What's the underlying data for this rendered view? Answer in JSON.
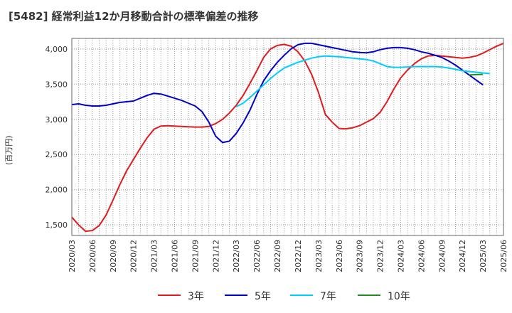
{
  "title": "[5482]  経常利益12か月移動合計の標準偏差の推移",
  "chart_data": {
    "type": "line",
    "title": "[5482]  経常利益12か月移動合計の標準偏差の推移",
    "ylabel": "(百万円)",
    "xlabel": "",
    "ylim": [
      1350,
      4150
    ],
    "yticks": [
      1500,
      2000,
      2500,
      3000,
      3500,
      4000
    ],
    "ytick_labels": [
      "1,500",
      "2,000",
      "2,500",
      "3,000",
      "3,500",
      "4,000"
    ],
    "x_start": "2020-03",
    "x_end": "2025-06",
    "xtick_labels": [
      "2020/03",
      "2020/06",
      "2020/09",
      "2020/12",
      "2021/03",
      "2021/06",
      "2021/09",
      "2021/12",
      "2022/03",
      "2022/06",
      "2022/09",
      "2022/12",
      "2023/03",
      "2023/06",
      "2023/09",
      "2023/12",
      "2024/03",
      "2024/06",
      "2024/09",
      "2024/12",
      "2025/03",
      "2025/06"
    ],
    "grid": true,
    "legend_position": "bottom",
    "series": [
      {
        "name": "3年",
        "color": "#e31a1c",
        "start": "2020-03",
        "values": [
          1610,
          1500,
          1410,
          1420,
          1490,
          1640,
          1850,
          2070,
          2270,
          2430,
          2590,
          2740,
          2860,
          2905,
          2910,
          2905,
          2900,
          2895,
          2890,
          2890,
          2900,
          2940,
          3000,
          3090,
          3200,
          3340,
          3510,
          3690,
          3880,
          4000,
          4050,
          4065,
          4040,
          3960,
          3830,
          3640,
          3380,
          3070,
          2960,
          2870,
          2865,
          2880,
          2910,
          2960,
          3010,
          3100,
          3250,
          3430,
          3590,
          3700,
          3790,
          3860,
          3900,
          3910,
          3900,
          3890,
          3880,
          3870,
          3880,
          3900,
          3940,
          3990,
          4040,
          4080
        ]
      },
      {
        "name": "5年",
        "color": "#0000cc",
        "start": "2020-03",
        "values": [
          3210,
          3220,
          3200,
          3190,
          3190,
          3200,
          3220,
          3240,
          3250,
          3260,
          3300,
          3340,
          3370,
          3360,
          3330,
          3300,
          3270,
          3230,
          3190,
          3110,
          2960,
          2760,
          2670,
          2690,
          2800,
          2950,
          3130,
          3350,
          3550,
          3690,
          3810,
          3910,
          4000,
          4060,
          4080,
          4080,
          4060,
          4040,
          4020,
          4000,
          3980,
          3960,
          3950,
          3945,
          3960,
          3990,
          4010,
          4020,
          4020,
          4010,
          3990,
          3960,
          3940,
          3910,
          3880,
          3830,
          3770,
          3700,
          3630,
          3560,
          3490
        ]
      },
      {
        "name": "7年",
        "color": "#00ccff",
        "start": "2022-03",
        "values": [
          3180,
          3230,
          3310,
          3400,
          3490,
          3580,
          3660,
          3730,
          3770,
          3810,
          3840,
          3870,
          3890,
          3900,
          3895,
          3890,
          3880,
          3870,
          3860,
          3850,
          3830,
          3790,
          3750,
          3740,
          3740,
          3745,
          3750,
          3750,
          3750,
          3750,
          3745,
          3730,
          3710,
          3690,
          3680,
          3670,
          3660,
          3650
        ]
      },
      {
        "name": "10年",
        "color": "#228b22",
        "start": "2025-01",
        "values": [
          3630,
          3635,
          3640
        ]
      }
    ]
  }
}
